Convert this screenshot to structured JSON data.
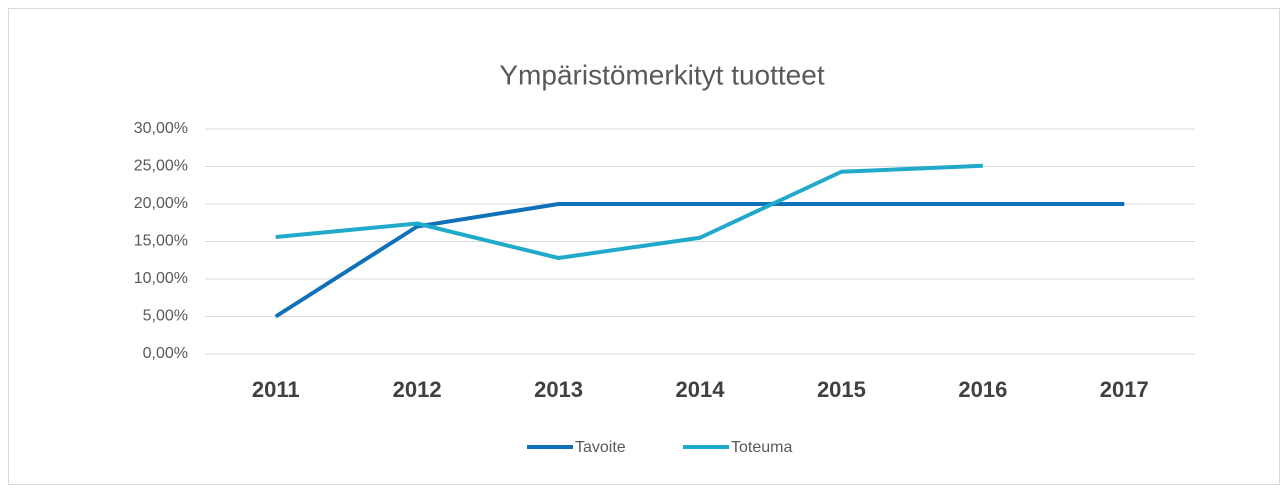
{
  "chart_data": {
    "type": "line",
    "title": "Ympäristömerkityt tuotteet",
    "categories": [
      "2011",
      "2012",
      "2013",
      "2014",
      "2015",
      "2016",
      "2017"
    ],
    "series": [
      {
        "name": "Tavoite",
        "color": "#1070b8",
        "values": [
          5,
          17,
          20,
          20,
          20,
          20,
          20
        ]
      },
      {
        "name": "Toteuma",
        "color": "#21a9c9",
        "values": [
          15.6,
          17.4,
          12.8,
          15.5,
          24.3,
          25.1,
          null
        ]
      }
    ],
    "ylim": [
      0,
      30
    ],
    "yticks": [
      {
        "value": 0,
        "label": "0,00%"
      },
      {
        "value": 5,
        "label": "5,00%"
      },
      {
        "value": 10,
        "label": "10,00%"
      },
      {
        "value": 15,
        "label": "15,00%"
      },
      {
        "value": 20,
        "label": "20,00%"
      },
      {
        "value": 25,
        "label": "25,00%"
      },
      {
        "value": 30,
        "label": "30,00%"
      }
    ],
    "grid": true,
    "legend": "bottom"
  }
}
